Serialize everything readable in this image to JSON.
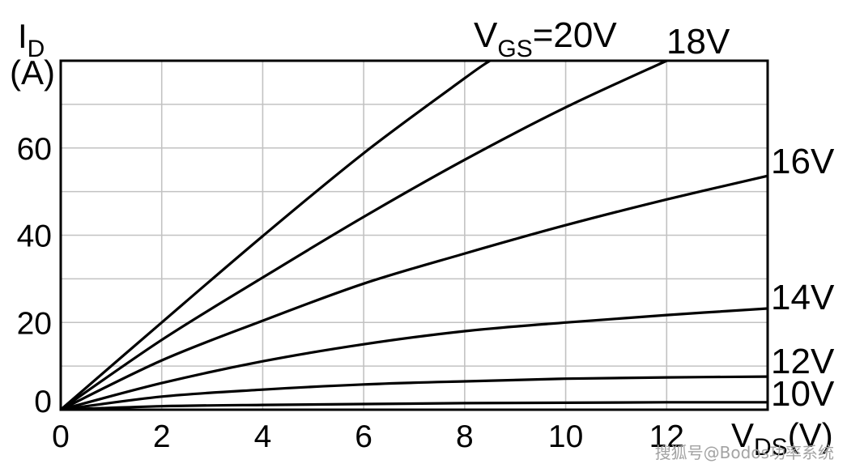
{
  "chart_data": {
    "type": "line",
    "xlabel": {
      "symbol": "V",
      "subscript": "DS",
      "unit": "(V)"
    },
    "ylabel": {
      "symbol": "I",
      "subscript": "D",
      "unit": "(A)"
    },
    "xlim": [
      0,
      14
    ],
    "ylim": [
      0,
      80
    ],
    "xticks": [
      0,
      2,
      4,
      6,
      8,
      10,
      12
    ],
    "yticks": [
      0,
      20,
      40,
      60
    ],
    "grid": true,
    "x_grid_step": 2,
    "y_grid_step": 10,
    "legend": "none",
    "curve_label_prefix": {
      "symbol": "V",
      "subscript": "GS",
      "sep": "="
    },
    "colors": {
      "curve": "#000000",
      "grid": "#c2c2c2",
      "frame": "#000000"
    },
    "series": [
      {
        "name": "20V",
        "points": [
          [
            0,
            0
          ],
          [
            2,
            20
          ],
          [
            4,
            39.8
          ],
          [
            6,
            58.8
          ],
          [
            8,
            76
          ],
          [
            8.5,
            80
          ]
        ]
      },
      {
        "name": "18V",
        "points": [
          [
            0,
            0
          ],
          [
            2,
            16
          ],
          [
            4,
            30.3
          ],
          [
            6,
            44.2
          ],
          [
            8,
            57.3
          ],
          [
            10,
            69.3
          ],
          [
            12,
            80
          ]
        ]
      },
      {
        "name": "16V",
        "points": [
          [
            0,
            0
          ],
          [
            2,
            11.3
          ],
          [
            4,
            20.4
          ],
          [
            6,
            28.9
          ],
          [
            8,
            35.8
          ],
          [
            10,
            42.3
          ],
          [
            12,
            48.2
          ],
          [
            14,
            53.6
          ]
        ]
      },
      {
        "name": "14V",
        "points": [
          [
            0,
            0
          ],
          [
            2,
            6.1
          ],
          [
            4,
            11.1
          ],
          [
            6,
            15
          ],
          [
            8,
            18
          ],
          [
            10,
            20
          ],
          [
            12,
            21.7
          ],
          [
            14,
            23.2
          ]
        ]
      },
      {
        "name": "12V",
        "points": [
          [
            0,
            0
          ],
          [
            2,
            3
          ],
          [
            4,
            4.6
          ],
          [
            6,
            5.8
          ],
          [
            8,
            6.5
          ],
          [
            10,
            7.1
          ],
          [
            12,
            7.4
          ],
          [
            14,
            7.6
          ]
        ]
      },
      {
        "name": "10V",
        "points": [
          [
            0,
            0
          ],
          [
            2,
            0.8
          ],
          [
            4,
            1.1
          ],
          [
            6,
            1.3
          ],
          [
            8,
            1.5
          ],
          [
            10,
            1.6
          ],
          [
            12,
            1.7
          ],
          [
            14,
            1.7
          ]
        ]
      }
    ]
  },
  "watermark": "搜狐号@Bodos功率系统"
}
